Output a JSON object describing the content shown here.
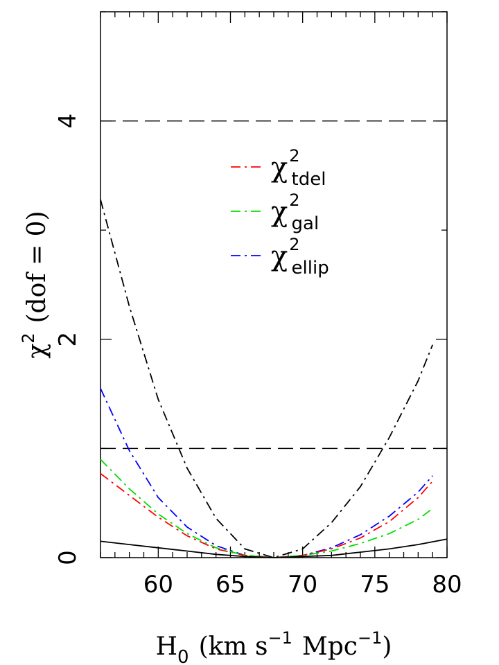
{
  "chart_data": {
    "type": "line",
    "xlim": [
      56,
      80
    ],
    "ylim": [
      0,
      5
    ],
    "xticks": [
      60,
      65,
      70,
      75,
      80
    ],
    "yticks": [
      0,
      2,
      4
    ],
    "xlabel": {
      "main": "H",
      "sub": "0",
      "rest1": "(km s",
      "sup1": "−1",
      "rest2": "Mpc",
      "sup2": "−1",
      "close": ")"
    },
    "ylabel": {
      "main": "χ",
      "sup": "2",
      "rest": "(dof = 0)"
    },
    "reference_lines": [
      {
        "y": 1,
        "style": "dashed",
        "color": "#000000"
      },
      {
        "y": 4,
        "style": "dashed",
        "color": "#000000"
      }
    ],
    "legend": {
      "placement": "upper-center",
      "entries": [
        {
          "symbol": "χ",
          "sup": "2",
          "sub": "tdel",
          "color": "#ff0000"
        },
        {
          "symbol": "χ",
          "sup": "2",
          "sub": "gal",
          "color": "#00dd00"
        },
        {
          "symbol": "χ",
          "sup": "2",
          "sub": "ellip",
          "color": "#0000ff"
        }
      ]
    },
    "series": [
      {
        "key": "total-dashdot",
        "color": "#000000",
        "style": "dashdot",
        "x": [
          56,
          58,
          60,
          62,
          64,
          66,
          68,
          70,
          72,
          74,
          76,
          78,
          79
        ],
        "y": [
          3.28,
          2.3,
          1.45,
          0.82,
          0.36,
          0.08,
          0.0,
          0.08,
          0.32,
          0.65,
          1.1,
          1.62,
          1.95
        ]
      },
      {
        "key": "ellip",
        "color": "#0000ff",
        "style": "dashdot",
        "x": [
          56,
          58,
          60,
          62,
          64,
          66,
          68,
          70,
          72,
          74,
          76,
          78,
          79
        ],
        "y": [
          1.55,
          0.98,
          0.55,
          0.28,
          0.11,
          0.02,
          0.0,
          0.02,
          0.09,
          0.21,
          0.38,
          0.6,
          0.75
        ]
      },
      {
        "key": "tdel",
        "color": "#ff0000",
        "style": "dashdot",
        "x": [
          56,
          58,
          60,
          62,
          64,
          66,
          68,
          70,
          72,
          74,
          76,
          78,
          79
        ],
        "y": [
          0.77,
          0.57,
          0.37,
          0.2,
          0.08,
          0.02,
          0.0,
          0.02,
          0.08,
          0.18,
          0.33,
          0.55,
          0.7
        ]
      },
      {
        "key": "gal",
        "color": "#00dd00",
        "style": "dashdot",
        "x": [
          56,
          58,
          60,
          62,
          64,
          66,
          68,
          70,
          72,
          74,
          76,
          78,
          79
        ],
        "y": [
          0.9,
          0.63,
          0.4,
          0.22,
          0.09,
          0.02,
          0.0,
          0.02,
          0.06,
          0.13,
          0.22,
          0.35,
          0.45
        ]
      },
      {
        "key": "solid",
        "color": "#000000",
        "style": "solid",
        "x": [
          56,
          58,
          60,
          62,
          64,
          66,
          68,
          70,
          72,
          74,
          76,
          78,
          80
        ],
        "y": [
          0.15,
          0.12,
          0.09,
          0.06,
          0.03,
          0.01,
          0.0,
          0.01,
          0.02,
          0.05,
          0.08,
          0.12,
          0.17
        ]
      }
    ]
  }
}
